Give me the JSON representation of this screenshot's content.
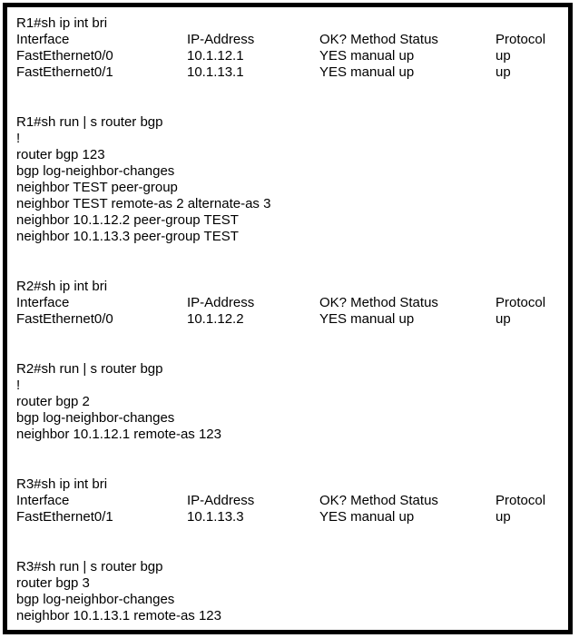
{
  "panel": {
    "background": "#ffffff",
    "border_color": "#000000",
    "text_color": "#000000"
  },
  "sections": [
    {
      "id": "r1-ip-int-bri",
      "command": "R1#sh ip int bri",
      "headers": [
        "Interface",
        "IP-Address",
        "OK? Method Status",
        "Protocol"
      ],
      "rows": [
        [
          "FastEthernet0/0",
          "10.1.12.1",
          "YES manual up",
          "up"
        ],
        [
          "FastEthernet0/1",
          "10.1.13.1",
          "YES manual up",
          "up"
        ]
      ]
    },
    {
      "id": "r1-bgp-config",
      "command": "R1#sh run | s router bgp",
      "lines": [
        "!",
        "router bgp 123",
        "bgp log-neighbor-changes",
        "neighbor TEST peer-group",
        "neighbor TEST remote-as 2 alternate-as 3",
        "neighbor 10.1.12.2 peer-group TEST",
        "neighbor 10.1.13.3 peer-group TEST"
      ]
    },
    {
      "id": "r2-ip-int-bri",
      "command": "R2#sh ip int bri",
      "headers": [
        "Interface",
        "IP-Address",
        "OK? Method Status",
        "Protocol"
      ],
      "rows": [
        [
          "FastEthernet0/0",
          "10.1.12.2",
          "YES manual up",
          "up"
        ]
      ]
    },
    {
      "id": "r2-bgp-config",
      "command": "R2#sh run | s router bgp",
      "lines": [
        "!",
        "router bgp 2",
        "bgp log-neighbor-changes",
        "neighbor 10.1.12.1 remote-as 123"
      ]
    },
    {
      "id": "r3-ip-int-bri",
      "command": "R3#sh ip int bri",
      "headers": [
        "Interface",
        "IP-Address",
        "OK? Method Status",
        "Protocol"
      ],
      "rows": [
        [
          "FastEthernet0/1",
          "10.1.13.3",
          "YES manual up",
          "up"
        ]
      ]
    },
    {
      "id": "r3-bgp-config",
      "command": "R3#sh run | s router bgp",
      "lines": [
        "router bgp 3",
        "bgp log-neighbor-changes",
        "neighbor 10.1.13.1 remote-as 123"
      ]
    }
  ]
}
